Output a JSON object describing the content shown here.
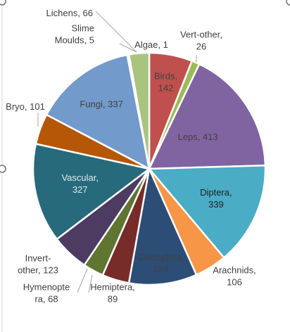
{
  "chart_data": {
    "type": "pie",
    "title": "",
    "series": [
      {
        "categories": [
          "Birds",
          "Vert-other",
          "Leps",
          "Diptera",
          "Arachnids",
          "Coleoptera",
          "Hemiptera",
          "Hymenoptera",
          "Invert-other",
          "Vascular",
          "Bryo",
          "Fungi",
          "Slime Moulds",
          "Algae",
          "Lichens"
        ],
        "values": [
          142,
          26,
          413,
          339,
          106,
          224,
          89,
          68,
          123,
          327,
          101,
          337,
          5,
          1,
          66
        ]
      }
    ],
    "colors": [
      "#c0504d",
      "#9bbb59",
      "#8064a2",
      "#4bacc6",
      "#f79646",
      "#2c4d75",
      "#772c2a",
      "#5f7530",
      "#4d3b62",
      "#276a7c",
      "#b65708",
      "#729aca",
      "#8f3b3b",
      "#e5e0ec",
      "#a9c47f"
    ],
    "data_labels": [
      "Birds,\n142",
      "Vert-other,\n26",
      "Leps, 413",
      "Diptera,\n339",
      "Arachnids,\n106",
      "Coleoptera,\n224",
      "Hemiptera,\n89",
      "Hymenopte\nra, 68",
      "Invert-\nother, 123",
      "Vascular,\n327",
      "Bryo, 101",
      "Fungi, 337",
      "Slime\nMoulds, 5",
      "Algae, 1",
      "Lichens, 66"
    ],
    "legend": "none"
  }
}
